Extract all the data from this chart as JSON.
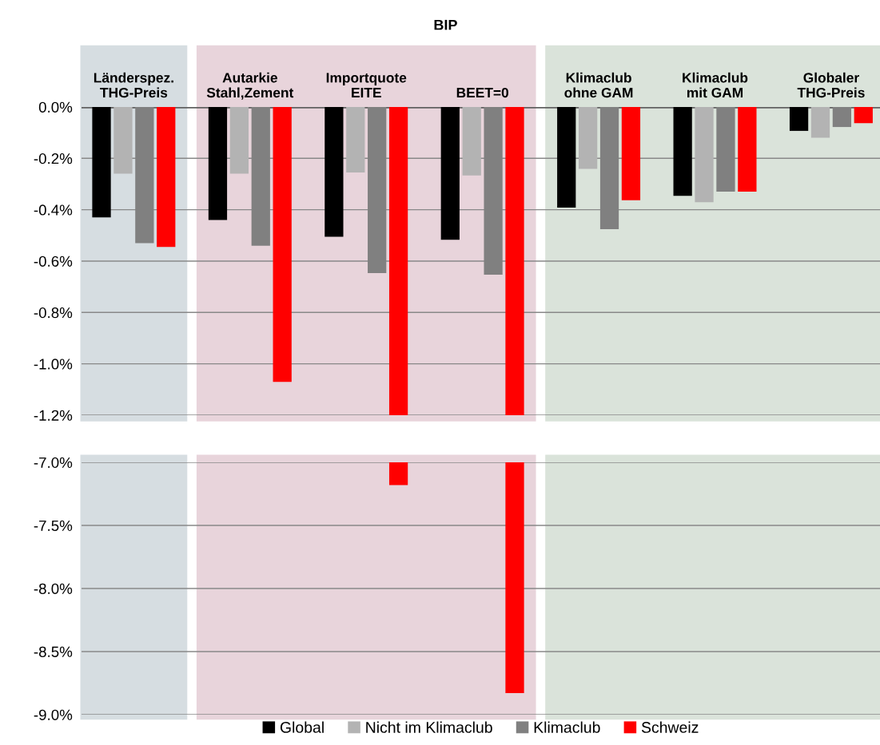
{
  "chart_data": [
    {
      "type": "bar",
      "title": "BIP",
      "categories": [
        "Länderspez.\nTHG-Preis",
        "Autarkie\nStahl,Zement",
        "Importquote\nEITE",
        "BEET=0",
        "Klimaclub\nohne GAM",
        "Klimaclub\nmit GAM",
        "Globaler\nTHG-Preis"
      ],
      "series": [
        {
          "color": "#000000",
          "values": [
            -0.43,
            -0.44,
            -0.505,
            -0.517,
            -0.392,
            -0.346,
            -0.093
          ]
        },
        {
          "color": "#b3b3b3",
          "values": [
            -0.26,
            -0.26,
            -0.255,
            -0.267,
            -0.241,
            -0.371,
            -0.12
          ]
        },
        {
          "color": "#808080",
          "values": [
            -0.53,
            -0.54,
            -0.647,
            -0.653,
            -0.476,
            -0.33,
            -0.078
          ]
        },
        {
          "color": "#ff0000",
          "values": [
            -0.545,
            -1.07,
            -1.2,
            -1.2,
            -0.363,
            -0.33,
            -0.063
          ]
        }
      ],
      "ylim": [
        -1.2,
        0
      ],
      "yticks": [
        {
          "value": 0,
          "label": "0.0%"
        },
        {
          "value": -0.2,
          "label": "-0.2%"
        },
        {
          "value": -0.4,
          "label": "-0.4%"
        },
        {
          "value": -0.6,
          "label": "-0.6%"
        },
        {
          "value": -0.8,
          "label": "-0.8%"
        },
        {
          "value": -1.0,
          "label": "-1.0%"
        },
        {
          "value": -1.2,
          "label": "-1.2%"
        }
      ],
      "bands": [
        {
          "axis": "x",
          "from": "Länderspez.\nTHG-Preis",
          "to": "Länderspez.\nTHG-Preis",
          "color": "#d6dde1"
        },
        {
          "axis": "x",
          "from": "Autarkie\nStahl,Zement",
          "to": "BEET=0",
          "color": "#e8d4db"
        },
        {
          "axis": "x",
          "from": "Klimaclub\nohne GAM",
          "to": "Globaler\nTHG-Preis",
          "color": "#dae3da"
        }
      ],
      "grid": "y",
      "legend": false
    },
    {
      "type": "bar",
      "categories": [
        "Länderspez.\nTHG-Preis",
        "Autarkie\nStahl,Zement",
        "Importquote\nEITE",
        "BEET=0",
        "Klimaclub\nohne GAM",
        "Klimaclub\nmit GAM",
        "Globaler\nTHG-Preis"
      ],
      "series": [
        {
          "name": "Global",
          "color": "#000000",
          "values": [
            null,
            null,
            null,
            null,
            null,
            null,
            null
          ]
        },
        {
          "name": "Nicht im Klimaclub",
          "color": "#b3b3b3",
          "values": [
            null,
            null,
            null,
            null,
            null,
            null,
            null
          ]
        },
        {
          "name": "Klimaclub",
          "color": "#808080",
          "values": [
            null,
            null,
            null,
            null,
            null,
            null,
            null
          ]
        },
        {
          "name": "Schweiz",
          "color": "#ff0000",
          "values": [
            null,
            null,
            -7.18,
            -8.83,
            null,
            null,
            null
          ]
        }
      ],
      "ylim": [
        -9.0,
        -7.0
      ],
      "yticks": [
        {
          "value": -7.0,
          "label": "-7.0%"
        },
        {
          "value": -7.5,
          "label": "-7.5%"
        },
        {
          "value": -8.0,
          "label": "-8.0%"
        },
        {
          "value": -8.5,
          "label": "-8.5%"
        },
        {
          "value": -9.0,
          "label": "-9.0%"
        }
      ],
      "bands": [
        {
          "axis": "x",
          "from": "Länderspez.\nTHG-Preis",
          "to": "Länderspez.\nTHG-Preis",
          "color": "#d6dde1"
        },
        {
          "axis": "x",
          "from": "Autarkie\nStahl,Zement",
          "to": "BEET=0",
          "color": "#e8d4db"
        },
        {
          "axis": "x",
          "from": "Klimaclub\nohne GAM",
          "to": "Globaler\nTHG-Preis",
          "color": "#dae3da"
        }
      ],
      "grid": "y",
      "legend": "bottom",
      "tick_labels": "y"
    }
  ]
}
